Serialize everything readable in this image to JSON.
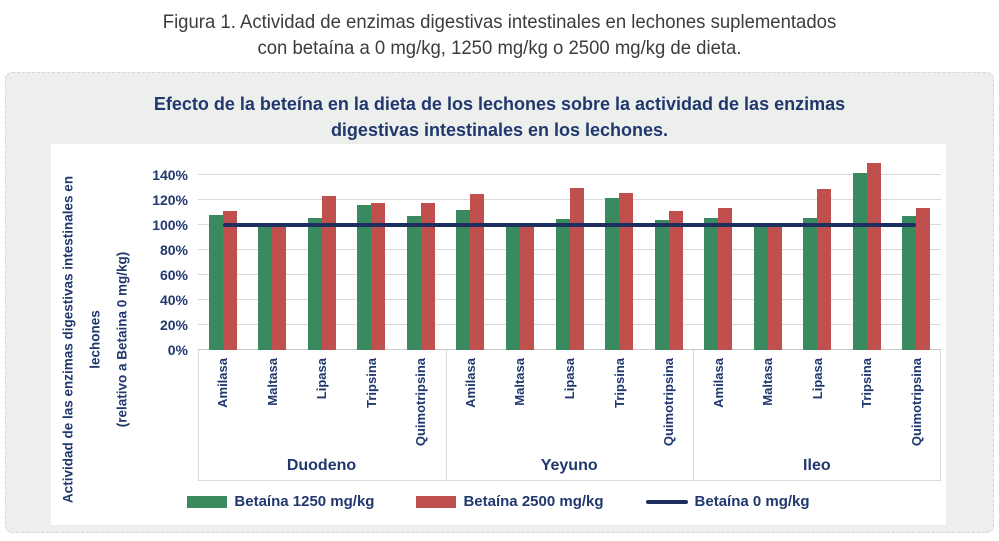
{
  "caption": {
    "line1": "Figura 1. Actividad de enzimas digestivas intestinales en lechones suplementados",
    "line2": "con betaína a 0 mg/kg, 1250 mg/kg o 2500 mg/kg de dieta."
  },
  "chart": {
    "title_lines": [
      "Efecto de la beteína en la dieta de los lechones sobre la actividad de las enzimas",
      "digestivas intestinales en los lechones."
    ],
    "y_axis_title_lines": [
      "Actividad de las enzimas digestivas intestinales en",
      "lechones",
      "(relativo a Betaina 0 mg/kg)"
    ],
    "text_color": "#20386e",
    "card_background": "#edefed"
  },
  "chart_data": {
    "type": "bar",
    "title": "Efecto de la beteína en la dieta de los lechones sobre la actividad de las enzimas digestivas intestinales en los lechones.",
    "ylabel": "Actividad de las enzimas digestivas intestinales en lechones (relativo a Betaina 0 mg/kg)",
    "y_unit": "%",
    "y_ticks_pct": [
      0,
      20,
      40,
      60,
      80,
      100,
      120,
      140
    ],
    "ylim_pct": [
      0,
      157
    ],
    "grid": true,
    "legend_position": "bottom",
    "groups": [
      {
        "label": "Duodeno",
        "categories": [
          "Amilasa",
          "Maltasa",
          "Lipasa",
          "Tripsina",
          "Quimotripsina"
        ]
      },
      {
        "label": "Yeyuno",
        "categories": [
          "Amilasa",
          "Maltasa",
          "Lipasa",
          "Tripsina",
          "Quimotripsina"
        ]
      },
      {
        "label": "Ileo",
        "categories": [
          "Amilasa",
          "Maltasa",
          "Lipasa",
          "Tripsina",
          "Quimotripsina"
        ]
      }
    ],
    "series": [
      {
        "name": "Betaína 1250 mg/kg",
        "type": "bar",
        "color": "#3a8a5f",
        "values": [
          [
            108,
            100,
            106,
            116,
            107
          ],
          [
            112,
            99,
            105,
            122,
            104
          ],
          [
            106,
            100,
            106,
            142,
            107
          ]
        ]
      },
      {
        "name": "Betaína 2500 mg/kg",
        "type": "bar",
        "color": "#c0504d",
        "values": [
          [
            111,
            100,
            123,
            118,
            118
          ],
          [
            125,
            99,
            130,
            126,
            111
          ],
          [
            114,
            102,
            129,
            150,
            114
          ]
        ]
      },
      {
        "name": "Betaína 0 mg/kg",
        "type": "line",
        "color": "#1c2f5e",
        "value": 100
      }
    ]
  }
}
